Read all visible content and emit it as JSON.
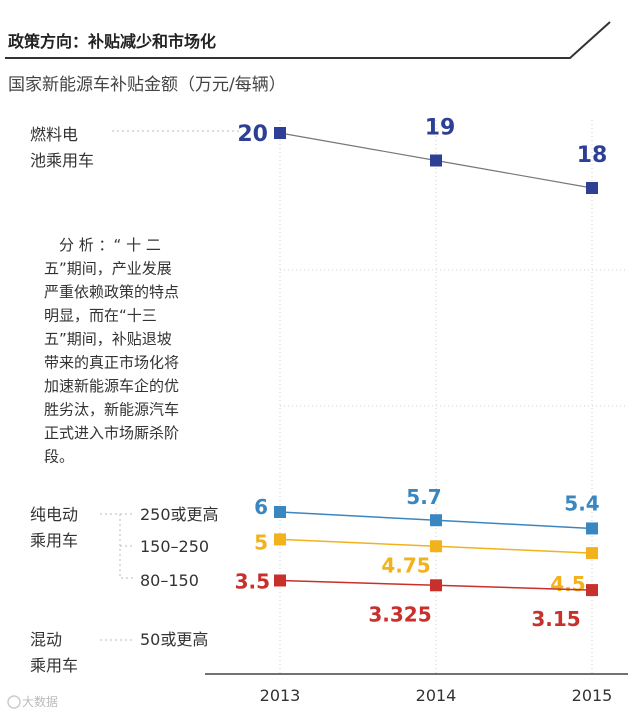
{
  "header": {
    "title": "政策方向：补贴减少和市场化"
  },
  "analysis_lines": [
    "　分 析 ：“ 十 二",
    "五”期间，产业发展",
    "严重依赖政策的特点",
    "明显，而在“十三",
    "五”期间，补贴退坡",
    "带来的真正市场化将",
    "加速新能源车企的优",
    "胜劣汰，新能源汽车",
    "正式进入市场厮杀阶",
    "段。"
  ],
  "groups": {
    "fuel_cell": [
      "燃料电",
      "池乘用车"
    ],
    "bev": [
      "纯电动",
      "乘用车"
    ],
    "phev": [
      "混动",
      "乘用车"
    ]
  },
  "range_labels": [
    "250或更高",
    "150–250",
    "80–150",
    "50或更高"
  ],
  "watermark": "大数据",
  "colors": {
    "fuel": "#2e3f96",
    "bev250": "#3a86c0",
    "bev150": "#f2b21c",
    "bev80": "#c8302c",
    "header_line": "#333333"
  },
  "chart_data": {
    "type": "line",
    "title": "国家新能源车补贴金额（万元/每辆）",
    "x": [
      "2013",
      "2014",
      "2015"
    ],
    "series": [
      {
        "key": "fuel",
        "values": [
          20,
          19,
          18
        ],
        "labels": [
          "20",
          "19",
          "18"
        ]
      },
      {
        "key": "bev250",
        "values": [
          6,
          5.7,
          5.4
        ],
        "labels": [
          "6",
          "5.7",
          "5.4"
        ]
      },
      {
        "key": "bev150",
        "values": [
          5,
          4.75,
          4.5
        ],
        "labels": [
          "5",
          "4.75",
          "4.5"
        ]
      },
      {
        "key": "bev80",
        "values": [
          3.5,
          3.325,
          3.15
        ],
        "labels": [
          "3.5",
          "3.325",
          "3.15"
        ]
      }
    ],
    "grid": true
  }
}
